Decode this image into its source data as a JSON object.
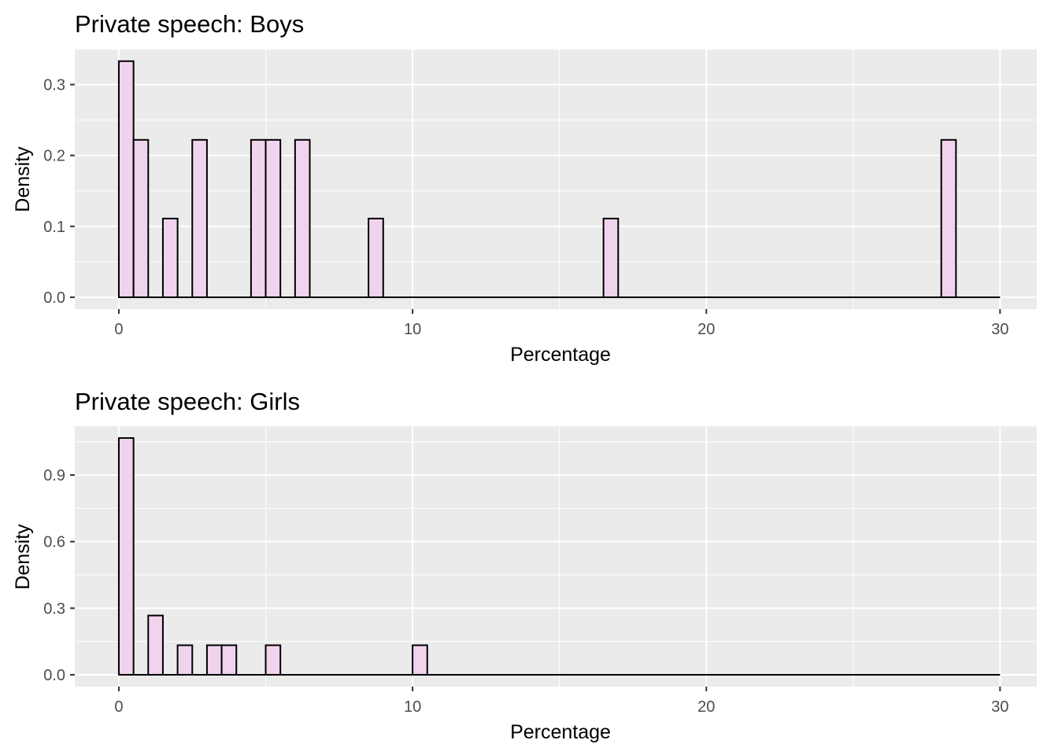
{
  "chart_data": [
    {
      "type": "bar",
      "subtype": "histogram",
      "title": "Private speech: Boys",
      "xlabel": "Percentage",
      "ylabel": "Density",
      "xlim": [
        -1.5,
        31.25
      ],
      "ylim": [
        -0.0167,
        0.3505
      ],
      "x_ticks": [
        0,
        10,
        20,
        30
      ],
      "x_tick_labels": [
        "0",
        "10",
        "20",
        "30"
      ],
      "y_ticks": [
        0,
        0.1,
        0.2,
        0.3
      ],
      "y_tick_labels": [
        "0.0",
        "0.1",
        "0.2",
        "0.3"
      ],
      "bin_width": 0.5,
      "bin_range": [
        0,
        30
      ],
      "bins": [
        {
          "x_start": 0,
          "x_end": 0.5,
          "density": 0.333
        },
        {
          "x_start": 0.5,
          "x_end": 1.0,
          "density": 0.222
        },
        {
          "x_start": 1.5,
          "x_end": 2.0,
          "density": 0.111
        },
        {
          "x_start": 2.5,
          "x_end": 3.0,
          "density": 0.222
        },
        {
          "x_start": 4.5,
          "x_end": 5.0,
          "density": 0.222
        },
        {
          "x_start": 5.0,
          "x_end": 5.5,
          "density": 0.222
        },
        {
          "x_start": 6.0,
          "x_end": 6.5,
          "density": 0.222
        },
        {
          "x_start": 8.5,
          "x_end": 9.0,
          "density": 0.111
        },
        {
          "x_start": 16.5,
          "x_end": 17.0,
          "density": 0.111
        },
        {
          "x_start": 28.0,
          "x_end": 28.5,
          "density": 0.222
        }
      ],
      "fill_color": "#f0d4ee",
      "outline_color": "#000000",
      "panel_color": "#ebebeb",
      "grid_color": "#ffffff",
      "grid": true,
      "legend": "none"
    },
    {
      "type": "bar",
      "subtype": "histogram",
      "title": "Private speech: Girls",
      "xlabel": "Percentage",
      "ylabel": "Density",
      "xlim": [
        -1.5,
        31.25
      ],
      "ylim": [
        -0.0533,
        1.12
      ],
      "x_ticks": [
        0,
        10,
        20,
        30
      ],
      "x_tick_labels": [
        "0",
        "10",
        "20",
        "30"
      ],
      "y_ticks": [
        0,
        0.3,
        0.6,
        0.9
      ],
      "y_tick_labels": [
        "0.0",
        "0.3",
        "0.6",
        "0.9"
      ],
      "bin_width": 0.5,
      "bin_range": [
        0,
        30
      ],
      "bins": [
        {
          "x_start": 0,
          "x_end": 0.5,
          "density": 1.067
        },
        {
          "x_start": 1.0,
          "x_end": 1.5,
          "density": 0.267
        },
        {
          "x_start": 2.0,
          "x_end": 2.5,
          "density": 0.133
        },
        {
          "x_start": 3.0,
          "x_end": 3.5,
          "density": 0.133
        },
        {
          "x_start": 3.5,
          "x_end": 4.0,
          "density": 0.133
        },
        {
          "x_start": 5.0,
          "x_end": 5.5,
          "density": 0.133
        },
        {
          "x_start": 10.0,
          "x_end": 10.5,
          "density": 0.133
        }
      ],
      "fill_color": "#f0d4ee",
      "outline_color": "#000000",
      "panel_color": "#ebebeb",
      "grid_color": "#ffffff",
      "grid": true,
      "legend": "none"
    }
  ]
}
